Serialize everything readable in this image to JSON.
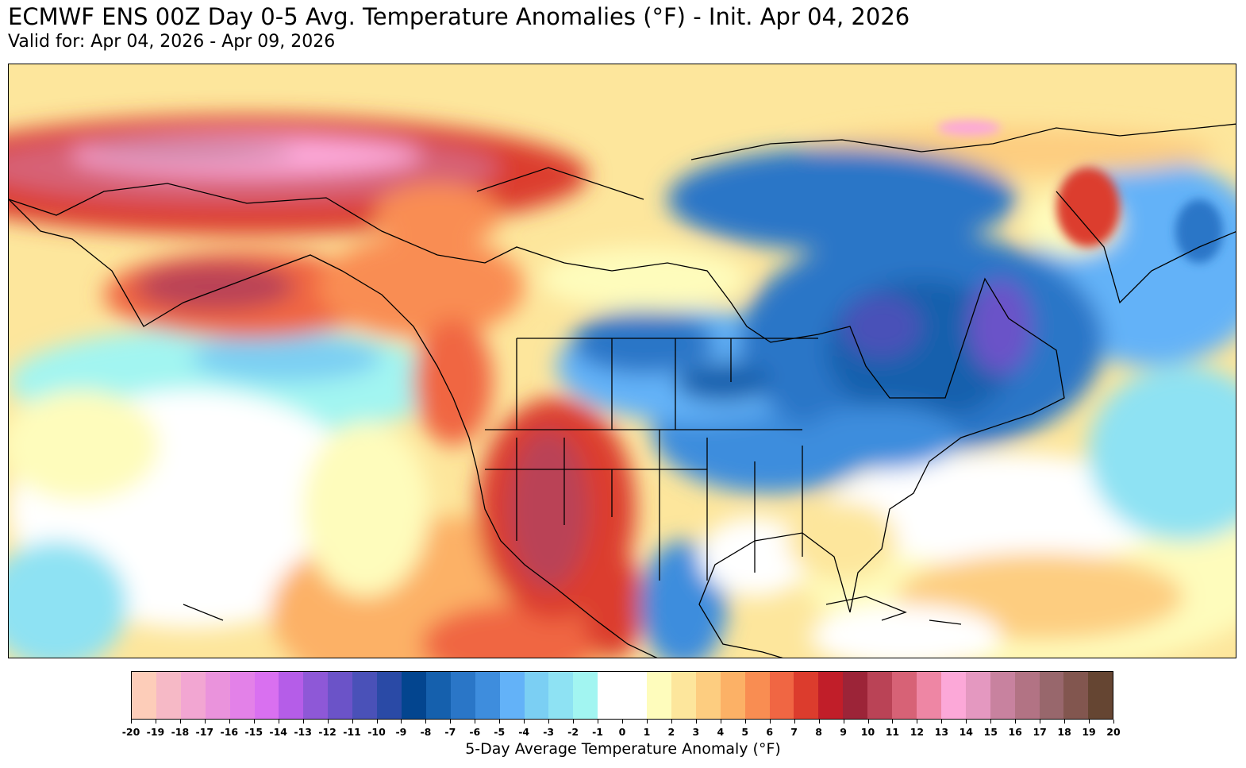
{
  "title": "ECMWF ENS 00Z Day 0-5 Avg. Temperature Anomalies (°F) - Init. Apr 04, 2026",
  "subtitle": "Valid for: Apr 04, 2026 - Apr 09, 2026",
  "colorbar": {
    "label": "5-Day Average Temperature Anomaly (°F)",
    "ticks": [
      "-20",
      "-19",
      "-18",
      "-17",
      "-16",
      "-15",
      "-14",
      "-13",
      "-12",
      "-11",
      "-10",
      "-9",
      "-8",
      "-7",
      "-6",
      "-5",
      "-4",
      "-3",
      "-2",
      "-1",
      "0",
      "1",
      "2",
      "3",
      "4",
      "5",
      "6",
      "7",
      "8",
      "9",
      "10",
      "11",
      "12",
      "13",
      "14",
      "15",
      "16",
      "17",
      "18",
      "19",
      "20"
    ],
    "colors": [
      "#fdcdb9",
      "#f6b9c6",
      "#f2a6d2",
      "#ea93dc",
      "#e381e8",
      "#d970f0",
      "#b55de8",
      "#8e58d7",
      "#6b53c8",
      "#4a51b8",
      "#2a4aa6",
      "#03458f",
      "#1560ad",
      "#2a76c7",
      "#3e8ddd",
      "#63b2f8",
      "#7bcff3",
      "#8ee2f3",
      "#a2f5f1",
      "#ffffff",
      "#ffffff",
      "#fefcbc",
      "#fde69c",
      "#fdcd80",
      "#fcb166",
      "#f98d52",
      "#f06643",
      "#dc3c2d",
      "#c11e29",
      "#9c2438",
      "#ba4356",
      "#d76276",
      "#ee86a4",
      "#fca8d8",
      "#e498c0",
      "#c8829f",
      "#b27384",
      "#98676c",
      "#82564f",
      "#654532"
    ]
  }
}
